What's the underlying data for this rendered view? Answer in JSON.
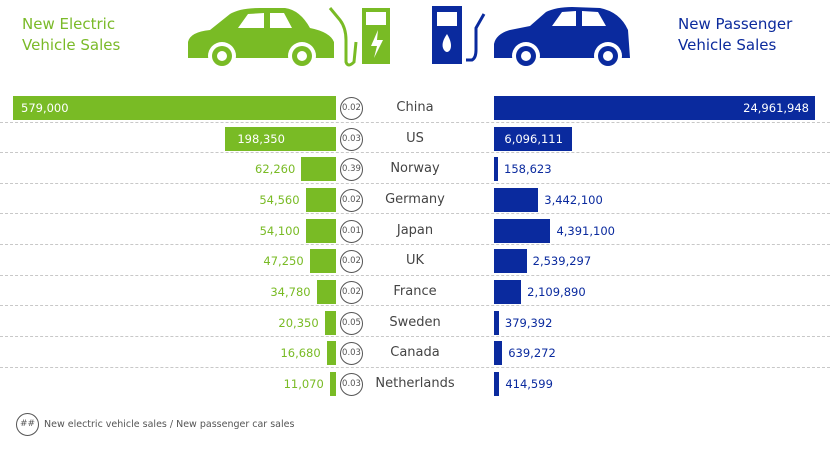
{
  "header": {
    "left_title_1": "New Electric",
    "left_title_2": "Vehicle Sales",
    "right_title_1": "New Passenger",
    "right_title_2": "Vehicle Sales"
  },
  "colors": {
    "ev": "#79bb25",
    "passenger": "#0a2a9e"
  },
  "chart_data": {
    "type": "bar",
    "categories": [
      "China",
      "US",
      "Norway",
      "Germany",
      "Japan",
      "UK",
      "France",
      "Sweden",
      "Canada",
      "Netherlands"
    ],
    "series": [
      {
        "name": "New Electric Vehicle Sales",
        "values": [
          579000,
          198350,
          62260,
          54560,
          54100,
          47250,
          34780,
          20350,
          16680,
          11070
        ],
        "labels": [
          "579,000",
          "198,350",
          "62,260",
          "54,560",
          "54,100",
          "47,250",
          "34,780",
          "20,350",
          "16,680",
          "11,070"
        ]
      },
      {
        "name": "New Passenger Vehicle Sales",
        "values": [
          24961948,
          6096111,
          158623,
          3442100,
          4391100,
          2539297,
          2109890,
          379392,
          639272,
          414599
        ],
        "labels": [
          "24,961,948",
          "6,096,111",
          "158,623",
          "3,442,100",
          "4,391,100",
          "2,539,297",
          "2,109,890",
          "379,392",
          "639,272",
          "414,599"
        ]
      }
    ],
    "ratios": [
      "0.02",
      "0.03",
      "0.39",
      "0.02",
      "0.01",
      "0.02",
      "0.02",
      "0.05",
      "0.03",
      "0.03"
    ]
  },
  "legend": {
    "symbol": "##",
    "text": "New electric vehicle sales / New passenger car sales"
  }
}
